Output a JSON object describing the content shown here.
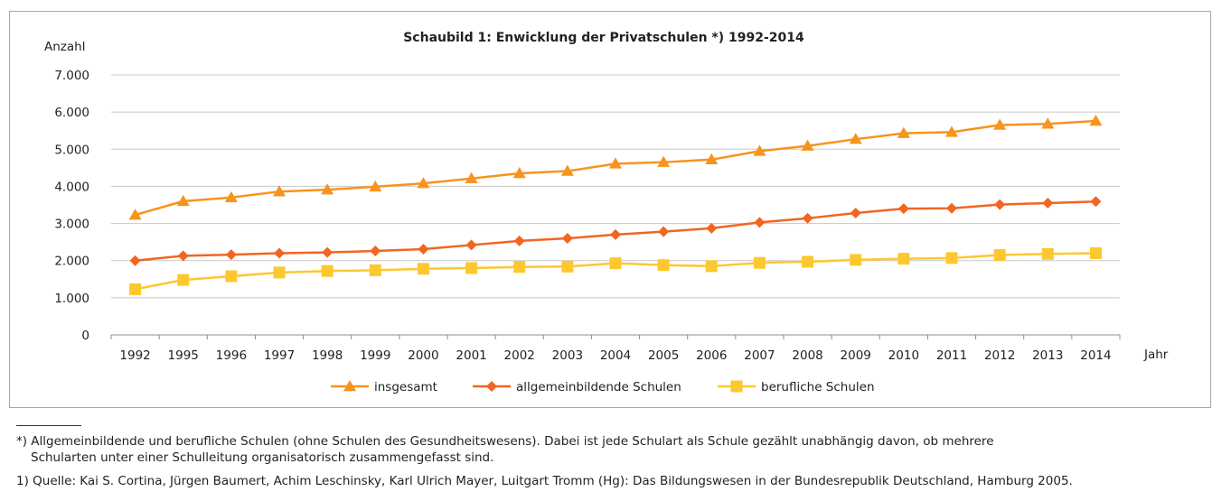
{
  "chart_data": {
    "type": "line",
    "title": "Schaubild 1: Enwicklung der Privatschulen *) 1992-2014",
    "ylabel": "Anzahl",
    "xlabel": "Jahr",
    "ylim": [
      0,
      7000
    ],
    "yticks": [
      "0",
      "1.000",
      "2.000",
      "3.000",
      "4.000",
      "5.000",
      "6.000",
      "7.000"
    ],
    "grid": true,
    "legend_position": "bottom",
    "categories": [
      "1992",
      "1995",
      "1996",
      "1997",
      "1998",
      "1999",
      "2000",
      "2001",
      "2002",
      "2003",
      "2004",
      "2005",
      "2006",
      "2007",
      "2008",
      "2009",
      "2010",
      "2011",
      "2012",
      "2013",
      "2014"
    ],
    "series": [
      {
        "name": "insgesamt",
        "color": "#f7941d",
        "marker": "triangle",
        "values": [
          3230,
          3600,
          3700,
          3860,
          3910,
          3990,
          4080,
          4210,
          4350,
          4410,
          4610,
          4650,
          4720,
          4950,
          5090,
          5270,
          5430,
          5460,
          5650,
          5680,
          5760
        ]
      },
      {
        "name": "allgemeinbildende Schulen",
        "color": "#f26522",
        "marker": "diamond",
        "values": [
          2000,
          2130,
          2160,
          2200,
          2220,
          2260,
          2310,
          2420,
          2530,
          2600,
          2700,
          2780,
          2870,
          3030,
          3140,
          3280,
          3400,
          3410,
          3510,
          3550,
          3590
        ]
      },
      {
        "name": "berufliche Schulen",
        "color": "#fdc82f",
        "marker": "square",
        "values": [
          1230,
          1480,
          1580,
          1680,
          1720,
          1740,
          1780,
          1800,
          1830,
          1840,
          1930,
          1880,
          1850,
          1940,
          1970,
          2020,
          2050,
          2070,
          2150,
          2180,
          2200
        ]
      }
    ]
  },
  "footnotes": {
    "line1": "*) Allgemeinbildende und berufliche Schulen (ohne Schulen des Gesundheitswesens). Dabei ist jede Schulart als Schule gezählt unabhängig davon, ob mehrere",
    "line2": "Schularten unter einer Schulleitung organisatorisch zusammengefasst sind.",
    "line3": "1) Quelle: Kai S. Cortina, Jürgen Baumert, Achim Leschinsky, Karl Ulrich Mayer, Luitgart Tromm (Hg): Das Bildungswesen in der Bundesrepublik Deutschland, Hamburg 2005."
  }
}
